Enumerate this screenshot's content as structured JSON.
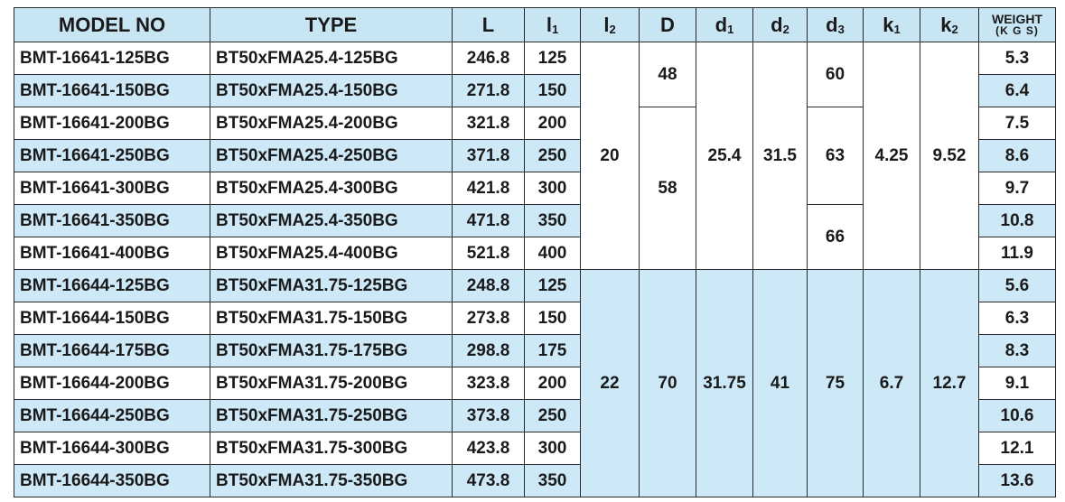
{
  "header": [
    {
      "text": "MODEL NO"
    },
    {
      "text": "TYPE"
    },
    {
      "text": "L"
    },
    {
      "text": "l",
      "sub": "1"
    },
    {
      "text": "l",
      "sub": "2"
    },
    {
      "text": "D"
    },
    {
      "text": "d",
      "sub": "1"
    },
    {
      "text": "d",
      "sub": "2"
    },
    {
      "text": "d",
      "sub": "3"
    },
    {
      "text": "k",
      "sub": "1"
    },
    {
      "text": "k",
      "sub": "2"
    },
    {
      "text": "WEIGHT",
      "line2": "(K G S)"
    }
  ],
  "groups": [
    {
      "rows": [
        {
          "model": "BMT-16641-125BG",
          "type": "BT50xFMA25.4-125BG",
          "L": 246.8,
          "l1": 125,
          "weight": 5.3
        },
        {
          "model": "BMT-16641-150BG",
          "type": "BT50xFMA25.4-150BG",
          "L": 271.8,
          "l1": 150,
          "weight": 6.4
        },
        {
          "model": "BMT-16641-200BG",
          "type": "BT50xFMA25.4-200BG",
          "L": 321.8,
          "l1": 200,
          "weight": 7.5
        },
        {
          "model": "BMT-16641-250BG",
          "type": "BT50xFMA25.4-250BG",
          "L": 371.8,
          "l1": 250,
          "weight": 8.6
        },
        {
          "model": "BMT-16641-300BG",
          "type": "BT50xFMA25.4-300BG",
          "L": 421.8,
          "l1": 300,
          "weight": 9.7
        },
        {
          "model": "BMT-16641-350BG",
          "type": "BT50xFMA25.4-350BG",
          "L": 471.8,
          "l1": 350,
          "weight": 10.8
        },
        {
          "model": "BMT-16641-400BG",
          "type": "BT50xFMA25.4-400BG",
          "L": 521.8,
          "l1": 400,
          "weight": 11.9
        }
      ],
      "l2": 20,
      "D": [
        48,
        58
      ],
      "d1": 25.4,
      "d2": 31.5,
      "d3": [
        60,
        63,
        66
      ],
      "k1": 4.25,
      "k2": 9.52
    },
    {
      "rows": [
        {
          "model": "BMT-16644-125BG",
          "type": "BT50xFMA31.75-125BG",
          "L": 248.8,
          "l1": 125,
          "weight": 5.6
        },
        {
          "model": "BMT-16644-150BG",
          "type": "BT50xFMA31.75-150BG",
          "L": 273.8,
          "l1": 150,
          "weight": 6.3
        },
        {
          "model": "BMT-16644-175BG",
          "type": "BT50xFMA31.75-175BG",
          "L": 298.8,
          "l1": 175,
          "weight": 8.3
        },
        {
          "model": "BMT-16644-200BG",
          "type": "BT50xFMA31.75-200BG",
          "L": 323.8,
          "l1": 200,
          "weight": 9.1
        },
        {
          "model": "BMT-16644-250BG",
          "type": "BT50xFMA31.75-250BG",
          "L": 373.8,
          "l1": 250,
          "weight": 10.6
        },
        {
          "model": "BMT-16644-300BG",
          "type": "BT50xFMA31.75-300BG",
          "L": 423.8,
          "l1": 300,
          "weight": 12.1
        },
        {
          "model": "BMT-16644-350BG",
          "type": "BT50xFMA31.75-350BG",
          "L": 473.8,
          "l1": 350,
          "weight": 13.6
        }
      ],
      "l2": 22,
      "D": [
        70
      ],
      "d1": 31.75,
      "d2": 41,
      "d3": [
        75
      ],
      "k1": 6.7,
      "k2": 12.7
    }
  ]
}
